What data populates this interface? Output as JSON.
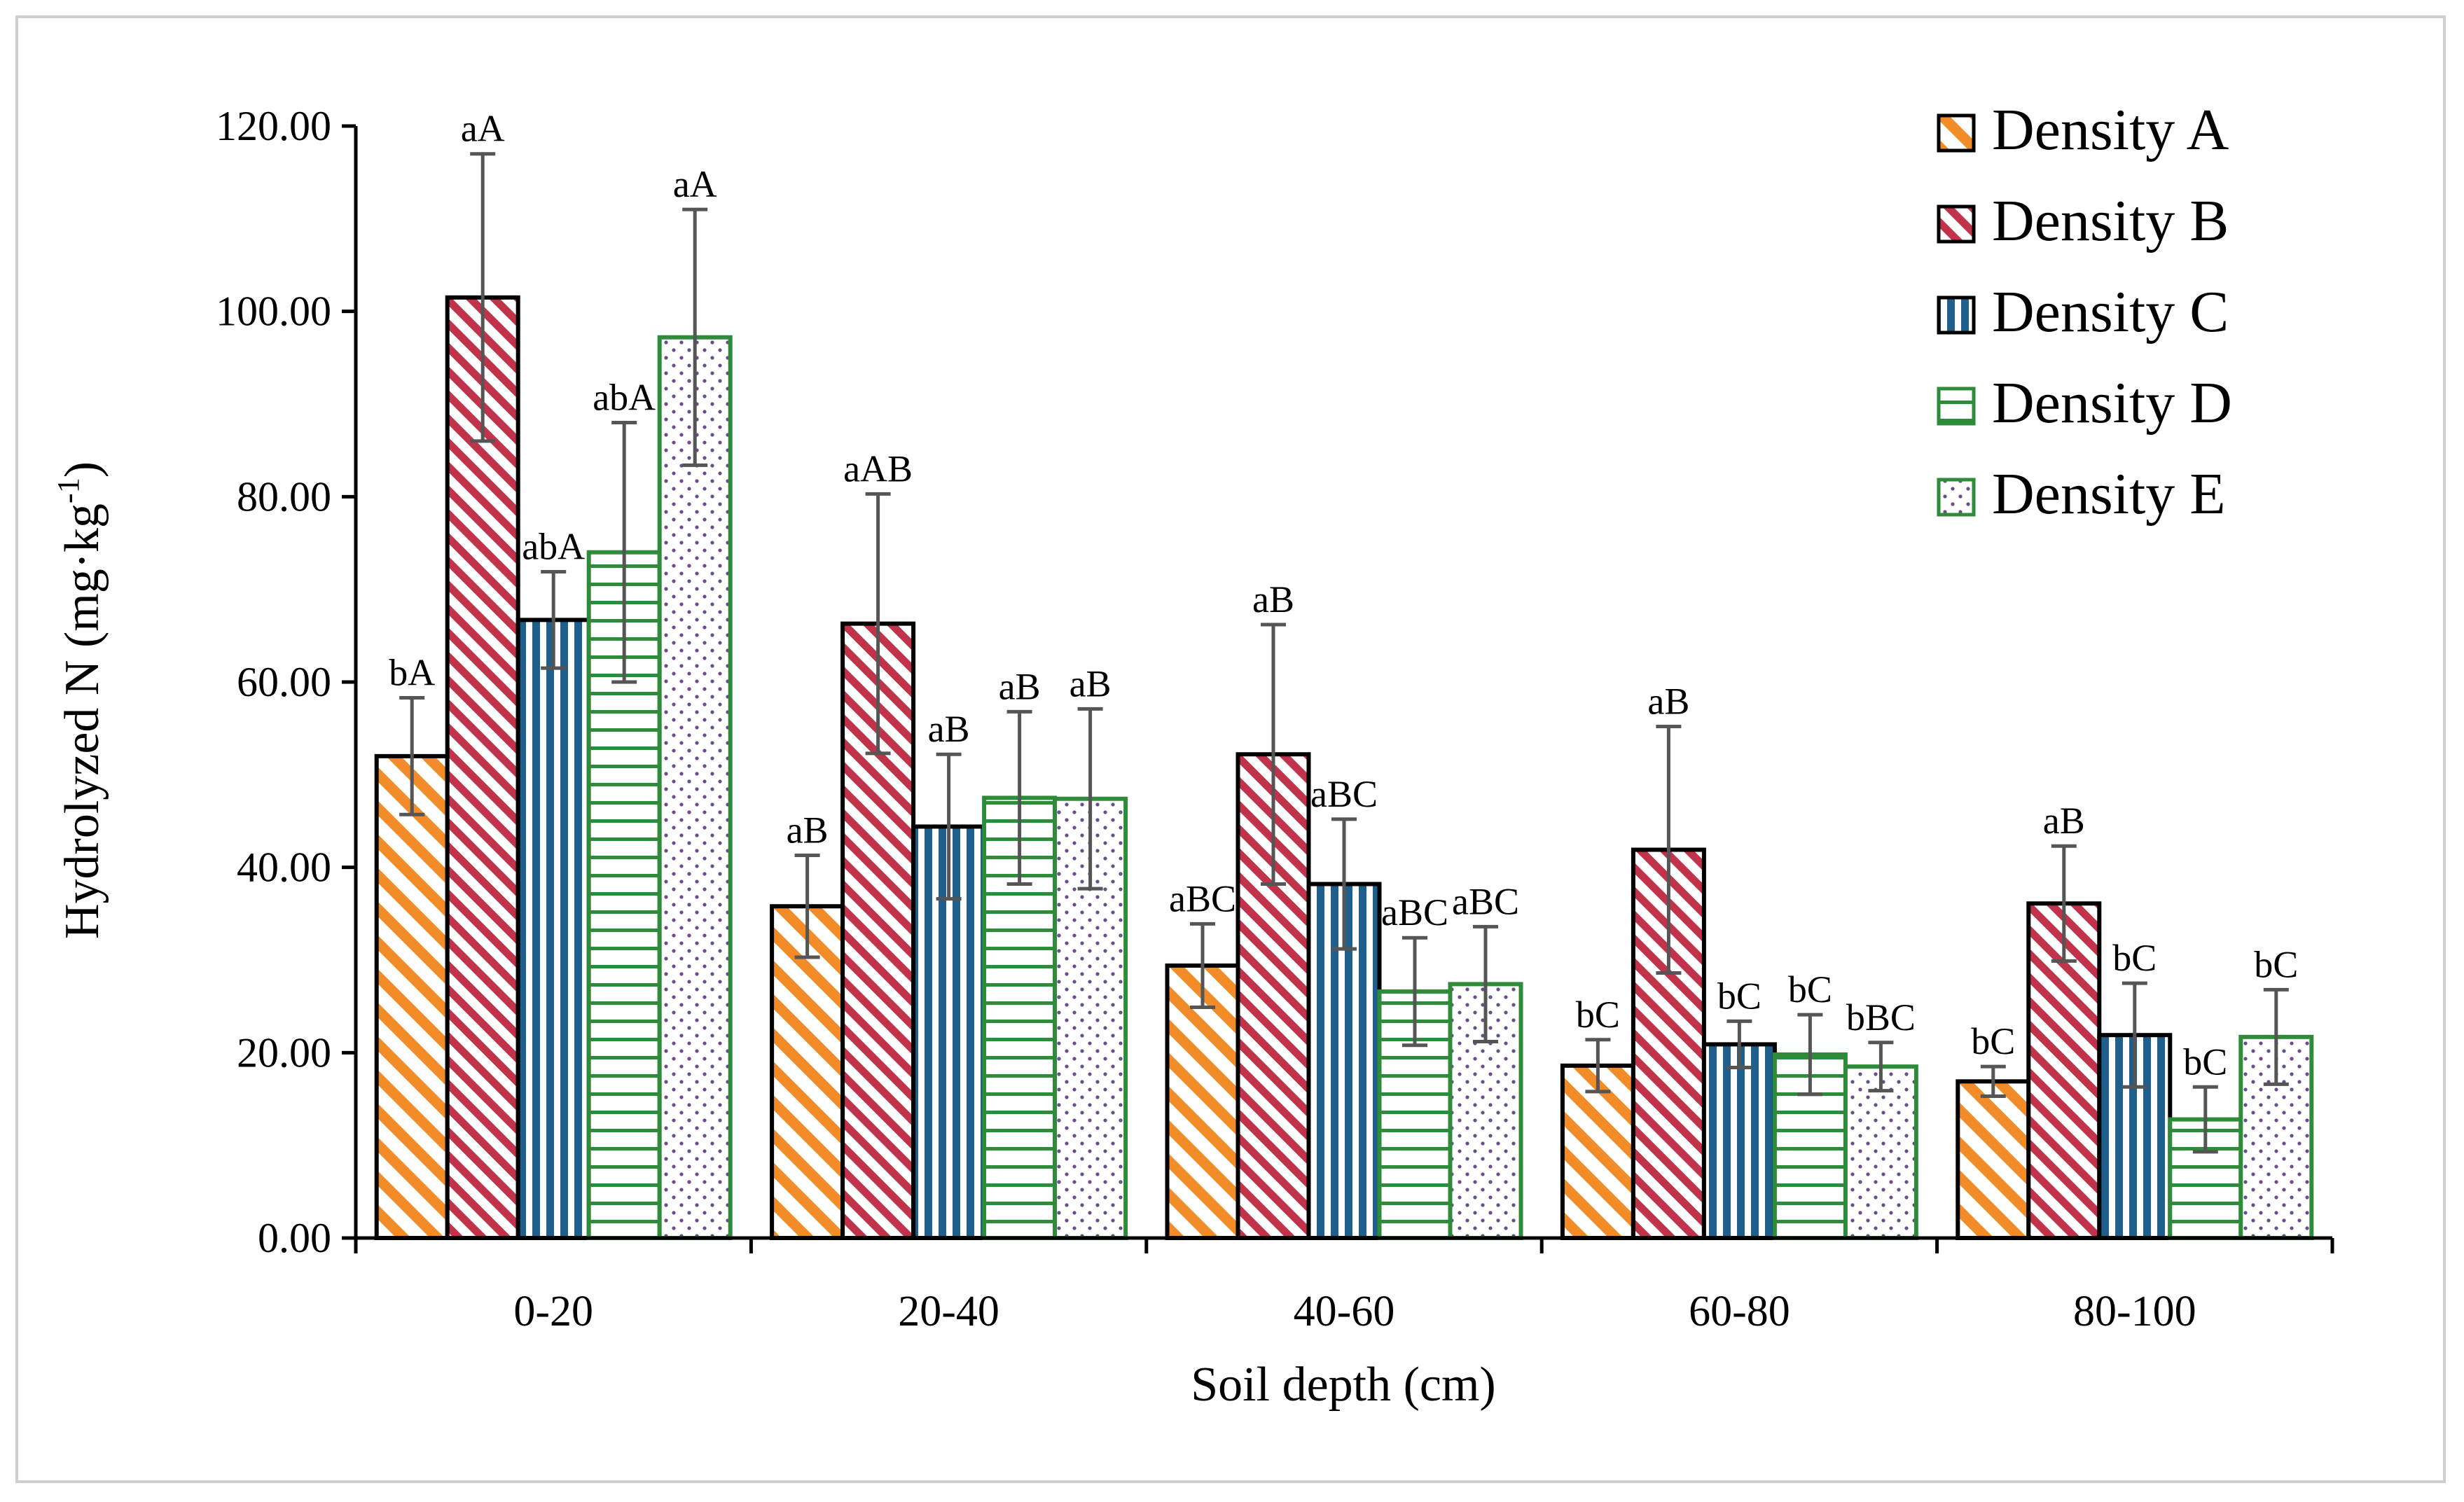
{
  "chart_data": {
    "type": "bar",
    "xlabel": "Soil depth (cm)",
    "ylabel_main": "Hydrolyzed N (mg·kg",
    "ylabel_sup": "-1",
    "ylabel_close": ")",
    "ylim": [
      0,
      120
    ],
    "yticks": [
      "0.00",
      "20.00",
      "40.00",
      "60.00",
      "80.00",
      "100.00",
      "120.00"
    ],
    "categories": [
      "0-20",
      "20-40",
      "40-60",
      "60-80",
      "80-100"
    ],
    "legend_position": "top-right",
    "grid": false,
    "series": [
      {
        "name": "Density A",
        "color": "#f28c28",
        "pattern": "diagonal-wide",
        "values": [
          52.0,
          35.8,
          29.4,
          18.6,
          16.9
        ],
        "errors": [
          6.3,
          5.5,
          4.5,
          2.8,
          1.6
        ],
        "labels": [
          "bA",
          "aB",
          "aBC",
          "bC",
          "bC"
        ]
      },
      {
        "name": "Density B",
        "color": "#c0334a",
        "pattern": "diagonal-narrow",
        "values": [
          101.5,
          66.3,
          52.2,
          41.9,
          36.1
        ],
        "errors": [
          15.5,
          14.0,
          14.0,
          13.3,
          6.2
        ],
        "labels": [
          "aA",
          "aAB",
          "aB",
          "aB",
          "aB"
        ]
      },
      {
        "name": "Density C",
        "color": "#1f5f8b",
        "pattern": "vertical",
        "values": [
          66.7,
          44.4,
          38.2,
          20.9,
          21.9
        ],
        "errors": [
          5.2,
          7.8,
          7.0,
          2.5,
          5.6
        ],
        "labels": [
          "abA",
          "aB",
          "aBC",
          "bC",
          "bC"
        ]
      },
      {
        "name": "Density D",
        "color": "#2e8b3a",
        "pattern": "horizontal",
        "values": [
          74.0,
          47.5,
          26.6,
          19.8,
          12.8
        ],
        "errors": [
          14.0,
          9.3,
          5.8,
          4.3,
          3.5
        ],
        "labels": [
          "abA",
          "aB",
          "aBC",
          "bC",
          "bC"
        ]
      },
      {
        "name": "Density E",
        "color": "#2e8b3a",
        "dot_color": "#6b4c8a",
        "pattern": "dots",
        "values": [
          97.2,
          47.4,
          27.4,
          18.5,
          21.7
        ],
        "errors": [
          13.8,
          9.7,
          6.2,
          2.6,
          5.1
        ],
        "labels": [
          "aA",
          "aB",
          "aBC",
          "bBC",
          "bC"
        ]
      }
    ]
  }
}
